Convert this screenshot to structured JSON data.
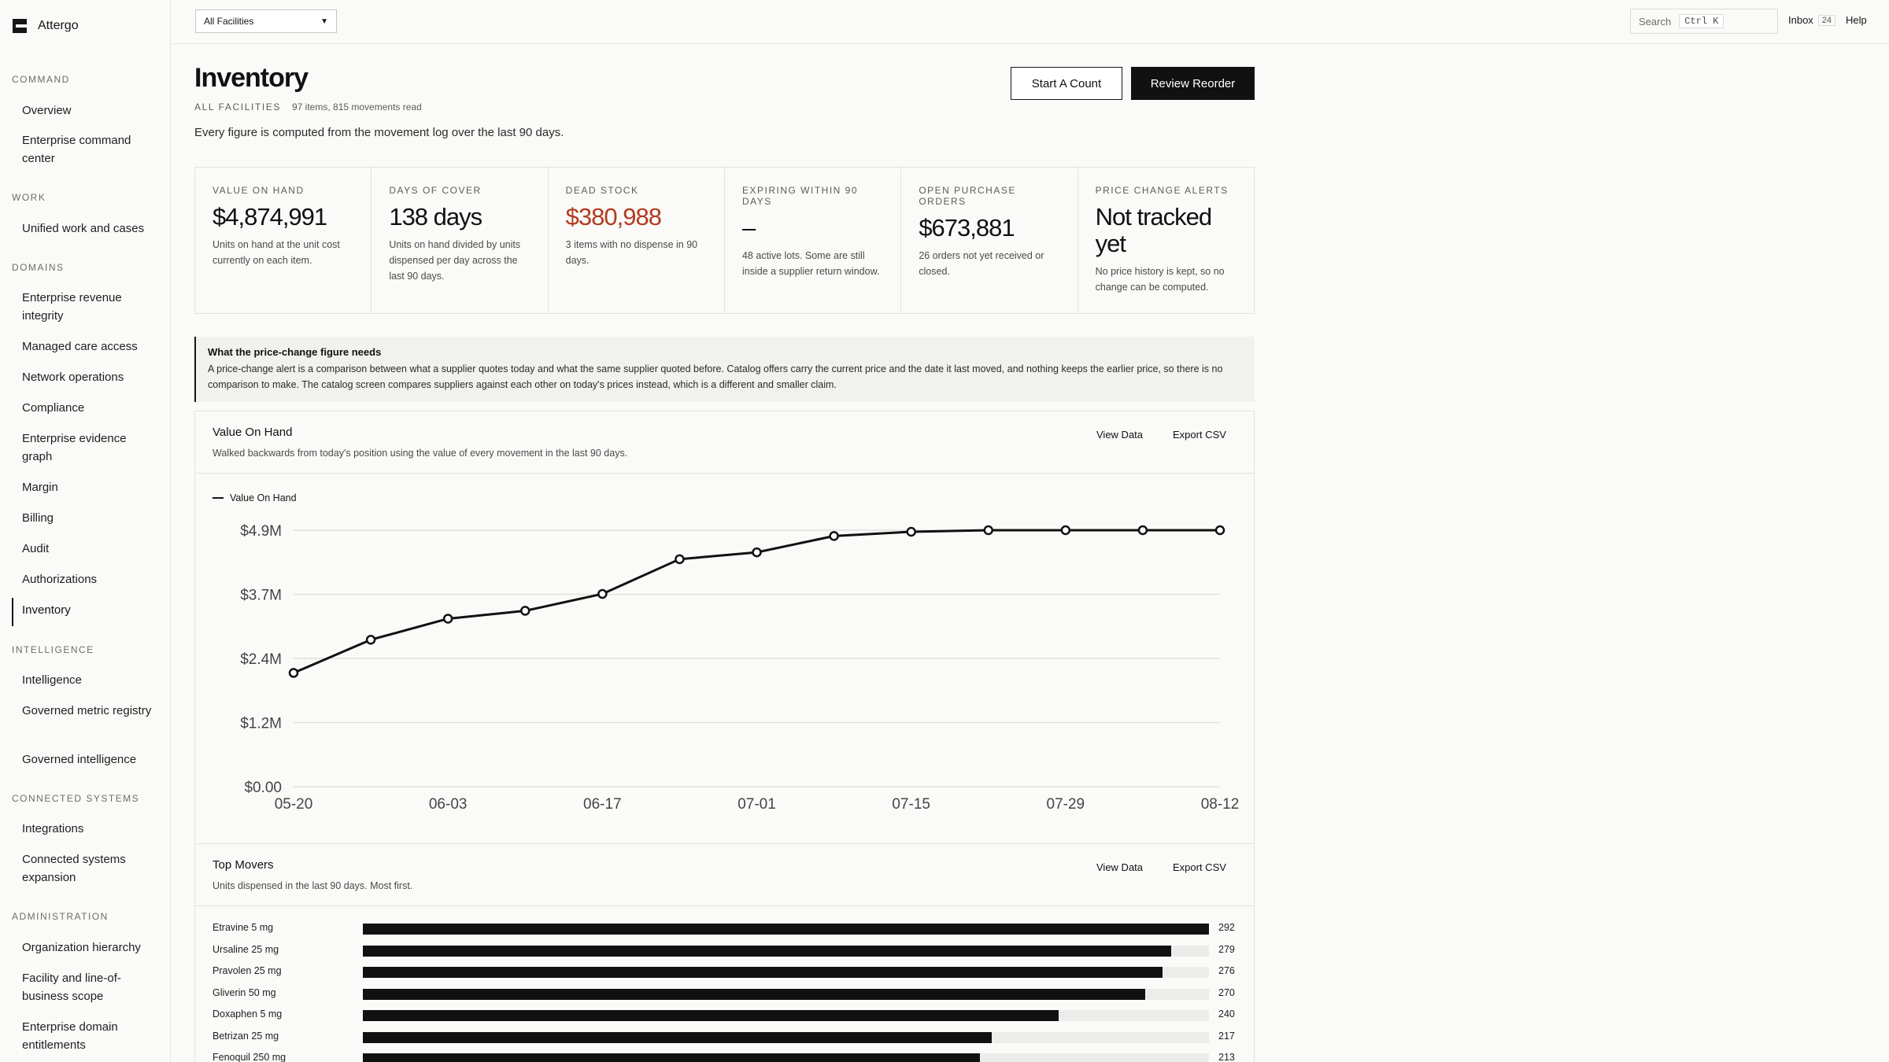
{
  "brand": {
    "name": "Attergo"
  },
  "sidebar": {
    "groups": [
      {
        "label": "COMMAND",
        "items": [
          "Overview",
          "Enterprise command center"
        ]
      },
      {
        "label": "WORK",
        "items": [
          "Unified work and cases"
        ]
      },
      {
        "label": "DOMAINS",
        "items": [
          "Enterprise revenue integrity",
          "Managed care access",
          "Network operations",
          "Compliance",
          "Enterprise evidence graph",
          "Margin",
          "Billing",
          "Audit",
          "Authorizations",
          "Inventory"
        ]
      },
      {
        "label": "INTELLIGENCE",
        "items": [
          "Intelligence",
          "Governed metric registry",
          "Governed intelligence"
        ]
      },
      {
        "label": "CONNECTED SYSTEMS",
        "items": [
          "Integrations",
          "Connected systems expansion"
        ]
      },
      {
        "label": "ADMINISTRATION",
        "items": [
          "Organization hierarchy",
          "Facility and line-of-business scope",
          "Enterprise domain entitlements"
        ]
      }
    ],
    "active": "Inventory"
  },
  "topbar": {
    "facility_value": "All Facilities",
    "search_label": "Search",
    "search_shortcut": "Ctrl K",
    "inbox_label": "Inbox",
    "inbox_count": "24",
    "help_label": "Help"
  },
  "header": {
    "title": "Inventory",
    "scope": "ALL FACILITIES",
    "summary": "97 items, 815 movements read",
    "subtitle": "Every figure is computed from the movement log over the last 90 days.",
    "btn_count": "Start A Count",
    "btn_reorder": "Review Reorder"
  },
  "kpis": [
    {
      "label": "VALUE ON HAND",
      "value": "$4,874,991",
      "desc": "Units on hand at the unit cost currently on each item.",
      "red": false
    },
    {
      "label": "DAYS OF COVER",
      "value": "138 days",
      "desc": "Units on hand divided by units dispensed per day across the last 90 days.",
      "red": false
    },
    {
      "label": "DEAD STOCK",
      "value": "$380,988",
      "desc": "3 items with no dispense in 90 days.",
      "red": true
    },
    {
      "label": "EXPIRING WITHIN 90 DAYS",
      "value": "–",
      "desc": "48 active lots. Some are still inside a supplier return window.",
      "red": false
    },
    {
      "label": "OPEN PURCHASE ORDERS",
      "value": "$673,881",
      "desc": "26 orders not yet received or closed.",
      "red": false
    },
    {
      "label": "PRICE CHANGE ALERTS",
      "value": "Not tracked yet",
      "desc": "No price history is kept, so no change can be computed.",
      "red": false
    }
  ],
  "note": {
    "title": "What the price-change figure needs",
    "body": "A price-change alert is a comparison between what a supplier quotes today and what the same supplier quoted before. Catalog offers carry the current price and the date it last moved, and nothing keeps the earlier price, so there is no comparison to make. The catalog screen compares suppliers against each other on today's prices instead, which is a different and smaller claim."
  },
  "value_panel": {
    "title": "Value On Hand",
    "subtitle": "Walked backwards from today's position using the value of every movement in the last 90 days.",
    "view_data": "View Data",
    "export": "Export CSV",
    "legend": "Value On Hand"
  },
  "movers_panel": {
    "title": "Top Movers",
    "subtitle": "Units dispensed in the last 90 days. Most first.",
    "view_data": "View Data",
    "export": "Export CSV"
  },
  "chart_data": [
    {
      "type": "line",
      "title": "Value On Hand",
      "series": [
        {
          "name": "Value On Hand",
          "x": [
            "05-20",
            "05-27",
            "06-03",
            "06-10",
            "06-17",
            "06-24",
            "07-01",
            "07-08",
            "07-15",
            "07-22",
            "07-29",
            "08-05",
            "08-12"
          ],
          "values": [
            2.16,
            2.79,
            3.19,
            3.34,
            3.66,
            4.32,
            4.45,
            4.76,
            4.84,
            4.87,
            4.87,
            4.87,
            4.87
          ]
        }
      ],
      "x_tick_labels": [
        "05-20",
        "06-03",
        "06-17",
        "07-01",
        "07-15",
        "07-29",
        "08-12"
      ],
      "y_tick_labels": [
        "$0.00",
        "$1.2M",
        "$2.4M",
        "$3.7M",
        "$4.9M"
      ],
      "ylim": [
        0,
        4.87
      ],
      "y_unit": "$M",
      "grid": true,
      "legend": "top-left"
    },
    {
      "type": "bar",
      "title": "Top Movers",
      "orientation": "horizontal",
      "categories": [
        "Etravine 5 mg",
        "Ursaline 25 mg",
        "Pravolen 25 mg",
        "Gliverin 50 mg",
        "Doxaphen 5 mg",
        "Betrizan 25 mg",
        "Fenoquil 250 mg"
      ],
      "values": [
        292,
        279,
        276,
        270,
        240,
        217,
        213
      ]
    }
  ]
}
